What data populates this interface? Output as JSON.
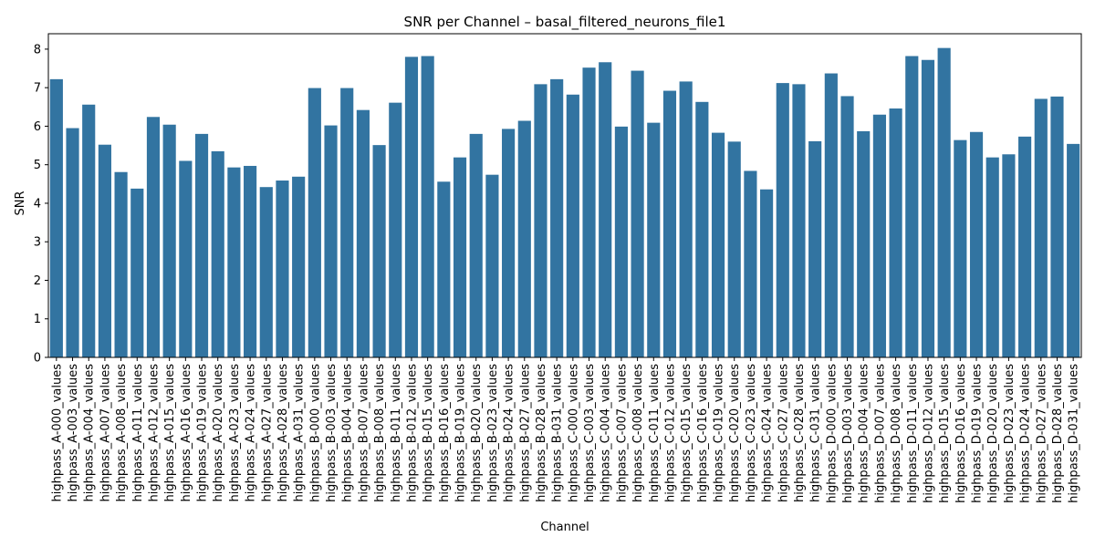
{
  "chart_data": {
    "type": "bar",
    "title": "SNR per Channel – basal_filtered_neurons_file1",
    "xlabel": "Channel",
    "ylabel": "SNR",
    "ylim": [
      0,
      8.4
    ],
    "yticks": [
      0,
      1,
      2,
      3,
      4,
      5,
      6,
      7,
      8
    ],
    "grid": false,
    "bar_color": "#3274a1",
    "categories": [
      "highpass_A-000_values",
      "highpass_A-003_values",
      "highpass_A-004_values",
      "highpass_A-007_values",
      "highpass_A-008_values",
      "highpass_A-011_values",
      "highpass_A-012_values",
      "highpass_A-015_values",
      "highpass_A-016_values",
      "highpass_A-019_values",
      "highpass_A-020_values",
      "highpass_A-023_values",
      "highpass_A-024_values",
      "highpass_A-027_values",
      "highpass_A-028_values",
      "highpass_A-031_values",
      "highpass_B-000_values",
      "highpass_B-003_values",
      "highpass_B-004_values",
      "highpass_B-007_values",
      "highpass_B-008_values",
      "highpass_B-011_values",
      "highpass_B-012_values",
      "highpass_B-015_values",
      "highpass_B-016_values",
      "highpass_B-019_values",
      "highpass_B-020_values",
      "highpass_B-023_values",
      "highpass_B-024_values",
      "highpass_B-027_values",
      "highpass_B-028_values",
      "highpass_B-031_values",
      "highpass_C-000_values",
      "highpass_C-003_values",
      "highpass_C-004_values",
      "highpass_C-007_values",
      "highpass_C-008_values",
      "highpass_C-011_values",
      "highpass_C-012_values",
      "highpass_C-015_values",
      "highpass_C-016_values",
      "highpass_C-019_values",
      "highpass_C-020_values",
      "highpass_C-023_values",
      "highpass_C-024_values",
      "highpass_C-027_values",
      "highpass_C-028_values",
      "highpass_C-031_values",
      "highpass_D-000_values",
      "highpass_D-003_values",
      "highpass_D-004_values",
      "highpass_D-007_values",
      "highpass_D-008_values",
      "highpass_D-011_values",
      "highpass_D-012_values",
      "highpass_D-015_values",
      "highpass_D-016_values",
      "highpass_D-019_values",
      "highpass_D-020_values",
      "highpass_D-023_values",
      "highpass_D-024_values",
      "highpass_D-027_values",
      "highpass_D-028_values",
      "highpass_D-031_values"
    ],
    "values": [
      7.22,
      5.95,
      6.56,
      5.52,
      4.81,
      4.38,
      6.24,
      6.04,
      5.1,
      5.8,
      5.35,
      4.93,
      4.97,
      4.42,
      4.59,
      4.69,
      6.99,
      6.02,
      6.99,
      6.42,
      5.51,
      6.61,
      7.8,
      7.82,
      4.56,
      5.19,
      5.8,
      4.74,
      5.93,
      6.14,
      7.09,
      7.22,
      6.82,
      7.52,
      7.66,
      5.99,
      7.44,
      6.09,
      6.92,
      7.16,
      6.63,
      5.83,
      5.6,
      4.84,
      4.36,
      7.12,
      7.09,
      5.61,
      7.37,
      6.78,
      5.87,
      6.3,
      6.46,
      7.82,
      7.72,
      8.03,
      5.64,
      5.85,
      5.19,
      5.27,
      5.73,
      6.71,
      6.77,
      5.54
    ]
  }
}
